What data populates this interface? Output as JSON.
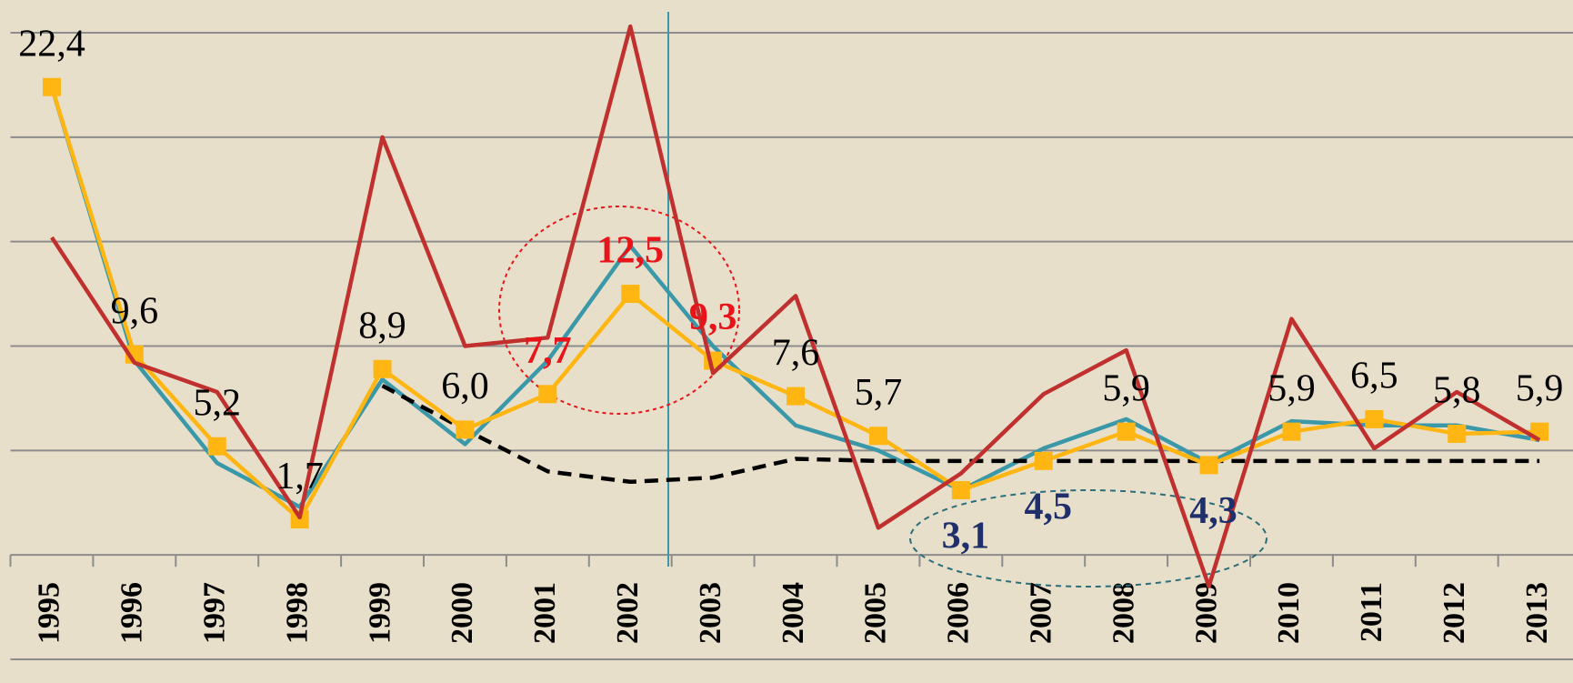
{
  "chart_data": {
    "type": "line",
    "categories": [
      "1995",
      "1996",
      "1997",
      "1998",
      "1999",
      "2000",
      "2001",
      "2002",
      "2003",
      "2004",
      "2005",
      "2006",
      "2007",
      "2008",
      "2009",
      "2010",
      "2011",
      "2012",
      "2013"
    ],
    "ylim": [
      -5,
      25
    ],
    "yticks": [
      -5,
      0,
      5,
      10,
      15,
      20,
      25
    ],
    "grid": true,
    "series": [
      {
        "color": "#3a98a8",
        "values": [
          22.4,
          9.3,
          4.4,
          2.3,
          8.4,
          5.3,
          9.3,
          14.8,
          10.0,
          6.2,
          5.0,
          3.1,
          5.1,
          6.5,
          4.4,
          6.4,
          6.2,
          6.2,
          5.5
        ]
      },
      {
        "color": "#000000",
        "style": "dashed",
        "values": [
          null,
          null,
          null,
          null,
          8.1,
          6.0,
          4.0,
          3.5,
          3.7,
          4.6,
          4.5,
          4.5,
          4.5,
          4.5,
          4.5,
          4.5,
          4.5,
          4.5,
          4.5
        ]
      },
      {
        "color": "#ffb612",
        "marker": "square",
        "values": [
          22.4,
          9.6,
          5.2,
          1.7,
          8.9,
          6.0,
          7.7,
          12.5,
          9.3,
          7.6,
          5.7,
          3.1,
          4.5,
          5.9,
          4.3,
          5.9,
          6.5,
          5.8,
          5.9
        ],
        "value_labels": [
          "22,4",
          "9,6",
          "5,2",
          "1,7",
          "8,9",
          "6,0",
          "7,7",
          "12,5",
          "9,3",
          "7,6",
          "5,7",
          "3,1",
          "4,5",
          "5,9",
          "4,3",
          "5,9",
          "6,5",
          "5,8",
          "5,9"
        ],
        "value_label_colors": [
          "#000000",
          "#000000",
          "#000000",
          "#000000",
          "#000000",
          "#000000",
          "#e8141a",
          "#e8141a",
          "#e8141a",
          "#000000",
          "#000000",
          "#1f2f6b",
          "#1f2f6b",
          "#000000",
          "#1f2f6b",
          "#000000",
          "#000000",
          "#000000",
          "#000000"
        ]
      },
      {
        "color": "#c0302f",
        "values": [
          15.2,
          9.2,
          7.8,
          1.8,
          20.0,
          10.0,
          10.4,
          25.3,
          8.7,
          12.4,
          1.3,
          3.9,
          7.7,
          9.8,
          -1.5,
          11.3,
          5.1,
          7.8,
          5.5
        ]
      }
    ]
  }
}
